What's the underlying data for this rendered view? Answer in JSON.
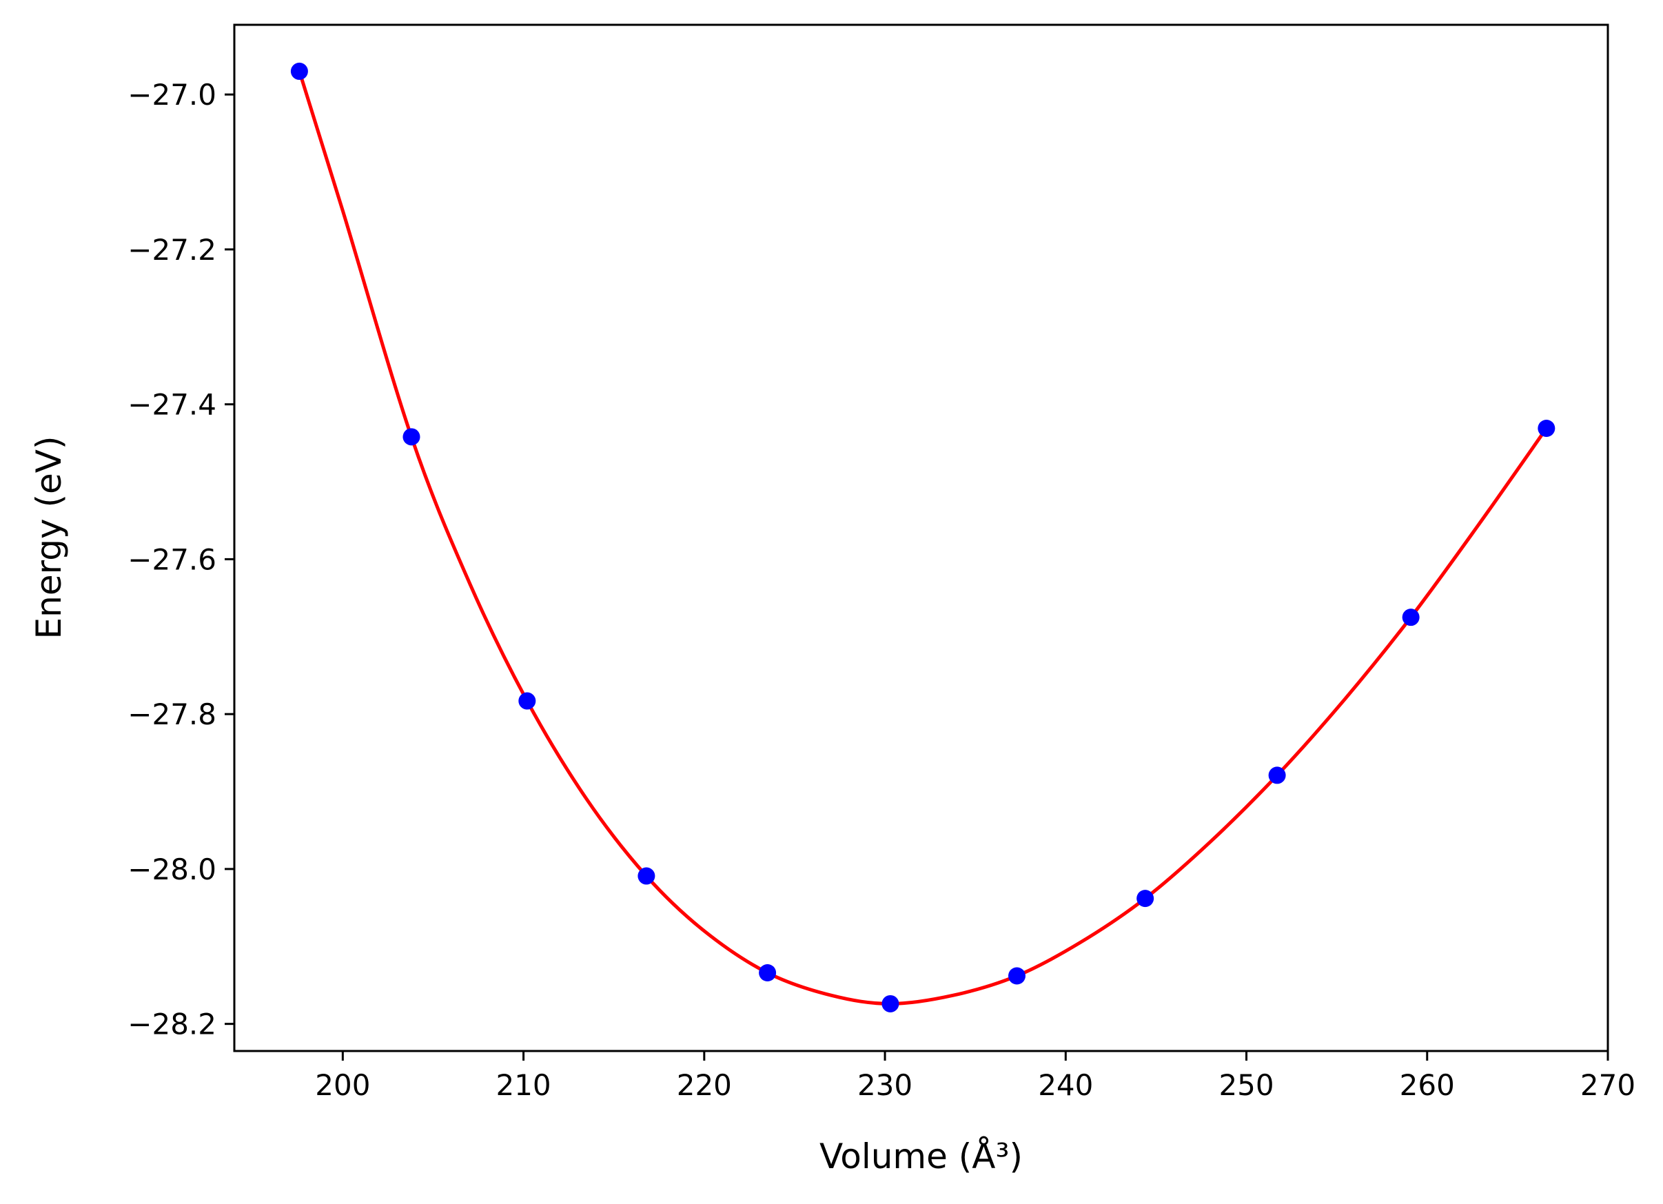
{
  "chart_data": {
    "type": "scatter",
    "title": "",
    "xlabel": "Volume (Å³)",
    "ylabel": "Energy (eV)",
    "xlim": [
      194,
      270
    ],
    "ylim": [
      -28.235,
      -26.91
    ],
    "xticks": [
      200,
      210,
      220,
      230,
      240,
      250,
      260,
      270
    ],
    "xtick_labels": [
      "200",
      "210",
      "220",
      "230",
      "240",
      "250",
      "260",
      "270"
    ],
    "yticks": [
      -27.0,
      -27.2,
      -27.4,
      -27.6,
      -27.8,
      -28.0,
      -28.2
    ],
    "ytick_labels": [
      "−27.0",
      "−27.2",
      "−27.4",
      "−27.6",
      "−27.8",
      "−28.0",
      "−28.2"
    ],
    "grid": false,
    "series": [
      {
        "kind": "points",
        "color": "#0000ff",
        "x": [
          197.6,
          203.8,
          210.2,
          216.8,
          223.5,
          230.3,
          237.3,
          244.4,
          251.7,
          259.1,
          266.6
        ],
        "y": [
          -26.97,
          -27.442,
          -27.783,
          -28.009,
          -28.134,
          -28.174,
          -28.138,
          -28.038,
          -27.879,
          -27.675,
          -27.431
        ]
      },
      {
        "kind": "fit-curve",
        "color": "#ff0000",
        "x": [
          197.6,
          200.0,
          203.8,
          207.0,
          210.2,
          213.5,
          216.8,
          220.0,
          223.5,
          227.0,
          230.3,
          233.8,
          237.3,
          240.8,
          244.4,
          248.0,
          251.7,
          255.4,
          259.1,
          262.8,
          266.6
        ],
        "y": [
          -26.97,
          -27.15,
          -27.442,
          -27.63,
          -27.783,
          -27.91,
          -28.009,
          -28.08,
          -28.134,
          -28.163,
          -28.174,
          -28.163,
          -28.138,
          -28.095,
          -28.038,
          -27.965,
          -27.879,
          -27.782,
          -27.675,
          -27.557,
          -27.431
        ]
      }
    ]
  }
}
